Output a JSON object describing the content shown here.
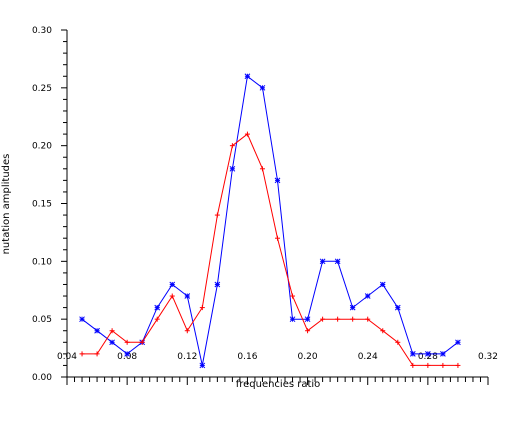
{
  "chart_data": {
    "type": "line",
    "title": "",
    "xlabel": "frequencies ratio",
    "ylabel": "nutation amplitudes",
    "xlim": [
      0.04,
      0.32
    ],
    "ylim": [
      0.0,
      0.3
    ],
    "x_ticks": [
      "0.04",
      "0.08",
      "0.12",
      "0.16",
      "0.20",
      "0.24",
      "0.28",
      "0.32"
    ],
    "y_ticks": [
      "0.00",
      "0.05",
      "0.10",
      "0.15",
      "0.20",
      "0.25",
      "0.30"
    ],
    "grid": false,
    "series": [
      {
        "color": "#0000ff",
        "marker": "asterisk",
        "x": [
          0.05,
          0.06,
          0.07,
          0.08,
          0.09,
          0.1,
          0.11,
          0.12,
          0.13,
          0.14,
          0.15,
          0.16,
          0.17,
          0.18,
          0.19,
          0.2,
          0.21,
          0.22,
          0.23,
          0.24,
          0.25,
          0.26,
          0.27,
          0.28,
          0.29,
          0.3
        ],
        "y": [
          0.05,
          0.04,
          0.03,
          0.02,
          0.03,
          0.06,
          0.08,
          0.07,
          0.01,
          0.08,
          0.18,
          0.26,
          0.25,
          0.17,
          0.05,
          0.05,
          0.1,
          0.1,
          0.06,
          0.07,
          0.08,
          0.06,
          0.02,
          0.02,
          0.02,
          0.03
        ]
      },
      {
        "color": "#ff0000",
        "marker": "plus",
        "x": [
          0.05,
          0.06,
          0.07,
          0.08,
          0.09,
          0.1,
          0.11,
          0.12,
          0.13,
          0.14,
          0.15,
          0.16,
          0.17,
          0.18,
          0.19,
          0.2,
          0.21,
          0.22,
          0.23,
          0.24,
          0.25,
          0.26,
          0.27,
          0.28,
          0.29,
          0.3
        ],
        "y": [
          0.02,
          0.02,
          0.04,
          0.03,
          0.03,
          0.05,
          0.07,
          0.04,
          0.06,
          0.14,
          0.2,
          0.21,
          0.18,
          0.12,
          0.07,
          0.04,
          0.05,
          0.05,
          0.05,
          0.05,
          0.04,
          0.03,
          0.01,
          0.01,
          0.01,
          0.01
        ]
      }
    ]
  }
}
